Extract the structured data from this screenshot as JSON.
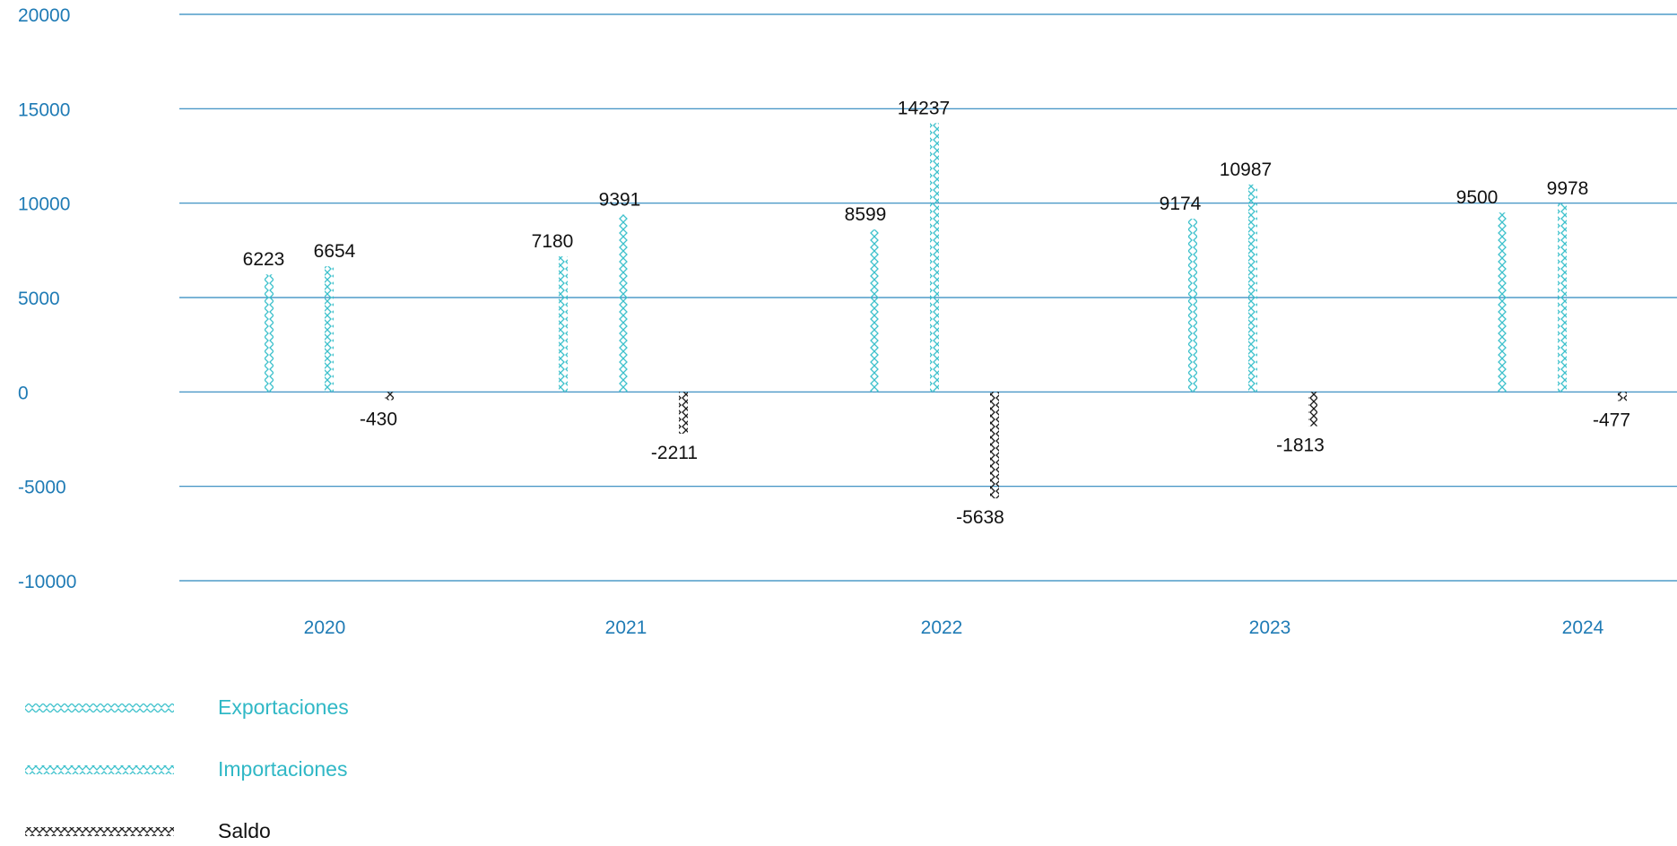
{
  "chart_data": {
    "type": "bar",
    "categories": [
      "2020",
      "2021",
      "2022",
      "2023",
      "2024"
    ],
    "series": [
      {
        "name": "Exportaciones",
        "values": [
          6223,
          7180,
          8599,
          9174,
          9500
        ],
        "color": "#3dc1cc"
      },
      {
        "name": "Importaciones",
        "values": [
          6654,
          9391,
          14237,
          10987,
          9978
        ],
        "color": "#3dc1cc"
      },
      {
        "name": "Saldo",
        "values": [
          -430,
          -2211,
          -5638,
          -1813,
          -477
        ],
        "color": "#1a1a1a"
      }
    ],
    "yticks": [
      "20000",
      "15000",
      "10000",
      "5000",
      "0",
      "-5000",
      "-10000"
    ],
    "ylim": [
      -10000,
      20000
    ],
    "grid": true,
    "legend_position": "bottom-left",
    "axis_color": "#1f7bb5",
    "grid_color": "#2a86bd",
    "legend_text_color": "#30b8c6"
  }
}
